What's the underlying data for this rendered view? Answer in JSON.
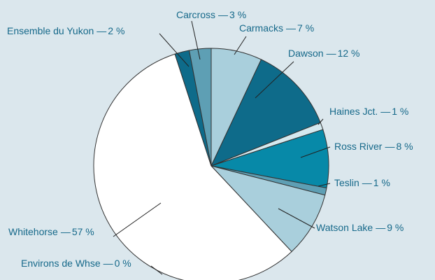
{
  "chart_data": {
    "type": "pie",
    "categories": [
      "Carmacks",
      "Dawson",
      "Haines Jct.",
      "Ross River",
      "Teslin",
      "Watson Lake",
      "Environs de Whse",
      "Whitehorse",
      "Ensemble du Yukon",
      "Carcross"
    ],
    "values": [
      7,
      12,
      1,
      8,
      1,
      9,
      0,
      57,
      2,
      3
    ],
    "value_labels": [
      "7 %",
      "12 %",
      "1 %",
      "8 %",
      "1 %",
      "9 %",
      "0 %",
      "57 %",
      "2 %",
      "3 %"
    ],
    "separator": "—",
    "colors": [
      "#a9cfdc",
      "#0e6b8a",
      "#d3e9ef",
      "#0789a8",
      "#5e9fb4",
      "#a9cfdc",
      "#ffffff",
      "#ffffff",
      "#0e6b8a",
      "#5e9fb4"
    ]
  }
}
